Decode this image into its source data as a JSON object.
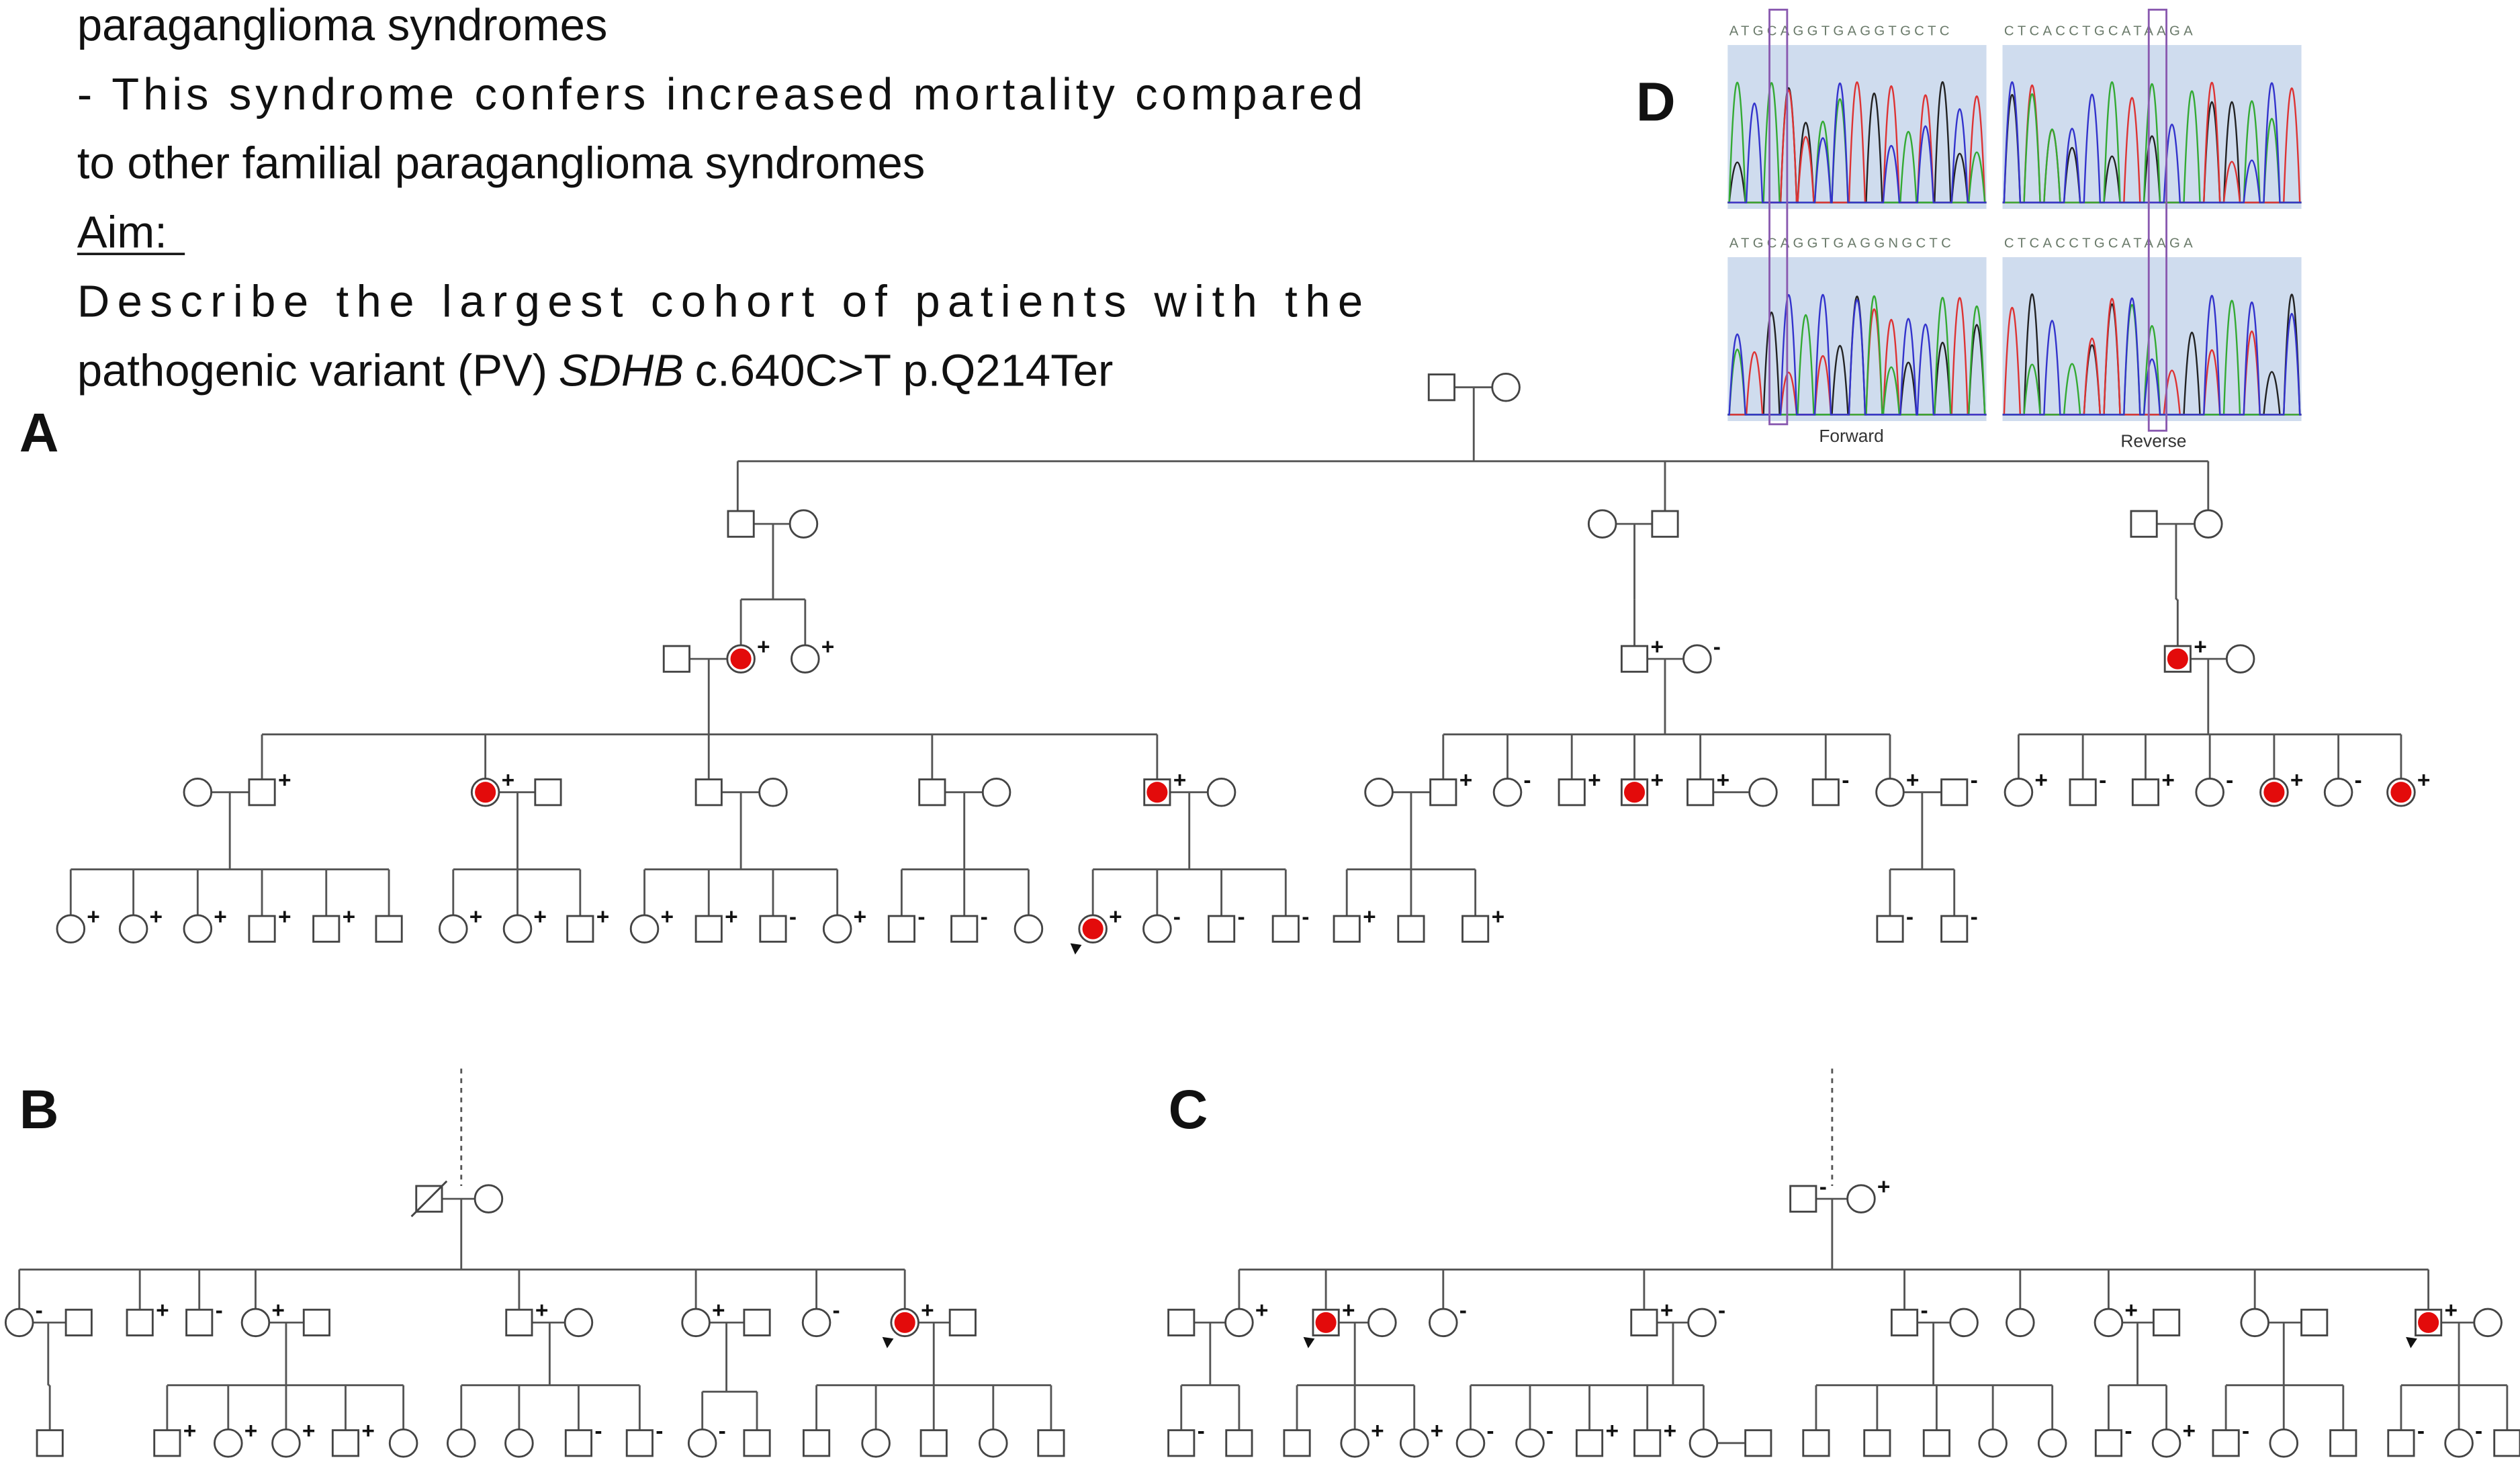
{
  "text": {
    "intro_lines": [
      "paraganglioma syndromes",
      "- This syndrome confers increased mortality compared",
      "to other familial paraganglioma syndromes"
    ],
    "aim_heading": "Aim:",
    "aim_line": "Describe the largest cohort of patients with the",
    "aim_variant": {
      "prefix": "pathogenic variant (PV)",
      "gene": "SDHB",
      "suffix": "c.640C>T p.Q214Ter"
    }
  },
  "panels": {
    "a": {
      "label": "A",
      "individuals": [
        null,
        null,
        null,
        null,
        null,
        null,
        null,
        null,
        null,
        "+",
        "+",
        "+",
        "-",
        "+",
        null,
        null,
        "+",
        "+",
        null,
        null,
        null,
        null,
        null,
        "+",
        null,
        null,
        "+",
        "-",
        "+",
        "+",
        "+",
        null,
        "-",
        "+",
        "-",
        "+",
        "-",
        "+",
        "-",
        "+",
        "-",
        "+",
        "+",
        "+",
        "+",
        "+",
        "+",
        null,
        "+",
        "+",
        "+",
        "+",
        "+",
        "-",
        "+",
        "-",
        "-",
        null,
        "+",
        "-",
        "-",
        "-",
        "+",
        null,
        "+",
        "-",
        "-"
      ]
    },
    "b": {
      "label": "B",
      "individuals": [
        null,
        null,
        "-",
        null,
        "+",
        "-",
        "+",
        null,
        "+",
        null,
        "+",
        null,
        "-",
        "+",
        null,
        null,
        "+",
        "+",
        "+",
        "+",
        null,
        null,
        null,
        "-",
        "-",
        "-",
        null,
        null,
        null,
        null,
        null,
        null
      ]
    },
    "c": {
      "label": "C",
      "individuals": [
        "-",
        "+",
        null,
        "+",
        "+",
        null,
        "-",
        "+",
        "-",
        "-",
        null,
        null,
        "+",
        null,
        null,
        null,
        "+",
        null,
        "-",
        null,
        null,
        "+",
        "+",
        "-",
        "-",
        "+",
        "+",
        null,
        null,
        null,
        null,
        null,
        null,
        null,
        "-",
        "+",
        "-",
        null,
        null,
        "-",
        "-",
        null
      ]
    },
    "d": {
      "label": "D",
      "sequences": [
        "ATGCAGGTGAGGTGCTC",
        "CTCACCTGCATAAGA",
        "ATGCAGGTGAGGNGCTC",
        "CTCACCTGCATAAGA"
      ],
      "forward": "Forward",
      "reverse": "Reverse"
    }
  }
}
